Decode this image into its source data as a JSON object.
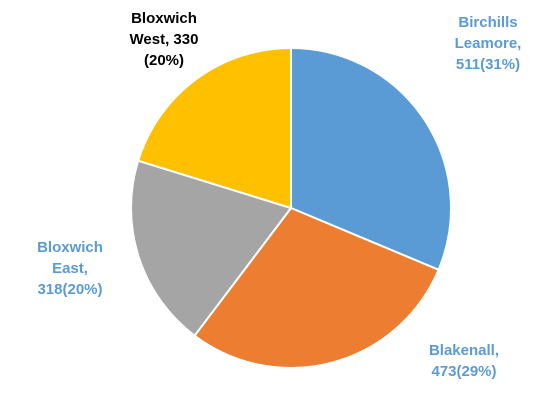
{
  "chart_data": {
    "type": "pie",
    "title": "",
    "slices": [
      {
        "name": "Birchills Leamore",
        "value": 511,
        "percent": "31%",
        "color": "#5B9BD5",
        "label_lines": [
          "Birchills",
          "Leamore,",
          "511(31%)"
        ],
        "label_color": "#5B9BD5"
      },
      {
        "name": "Blakenall",
        "value": 473,
        "percent": "29%",
        "color": "#ED7D31",
        "label_lines": [
          "Blakenall,",
          "473(29%)"
        ],
        "label_color": "#5B9BD5"
      },
      {
        "name": "Bloxwich East",
        "value": 318,
        "percent": "20%",
        "color": "#A5A5A5",
        "label_lines": [
          "Bloxwich",
          "East,",
          "318(20%)"
        ],
        "label_color": "#5B9BD5"
      },
      {
        "name": "Bloxwich West",
        "value": 330,
        "percent": "20%",
        "color": "#FFC000",
        "label_lines": [
          "Bloxwich",
          "West, 330",
          "(20%)"
        ],
        "label_color": "#000000"
      }
    ],
    "start_angle_deg": 0,
    "direction": "clockwise",
    "legend": "none"
  }
}
